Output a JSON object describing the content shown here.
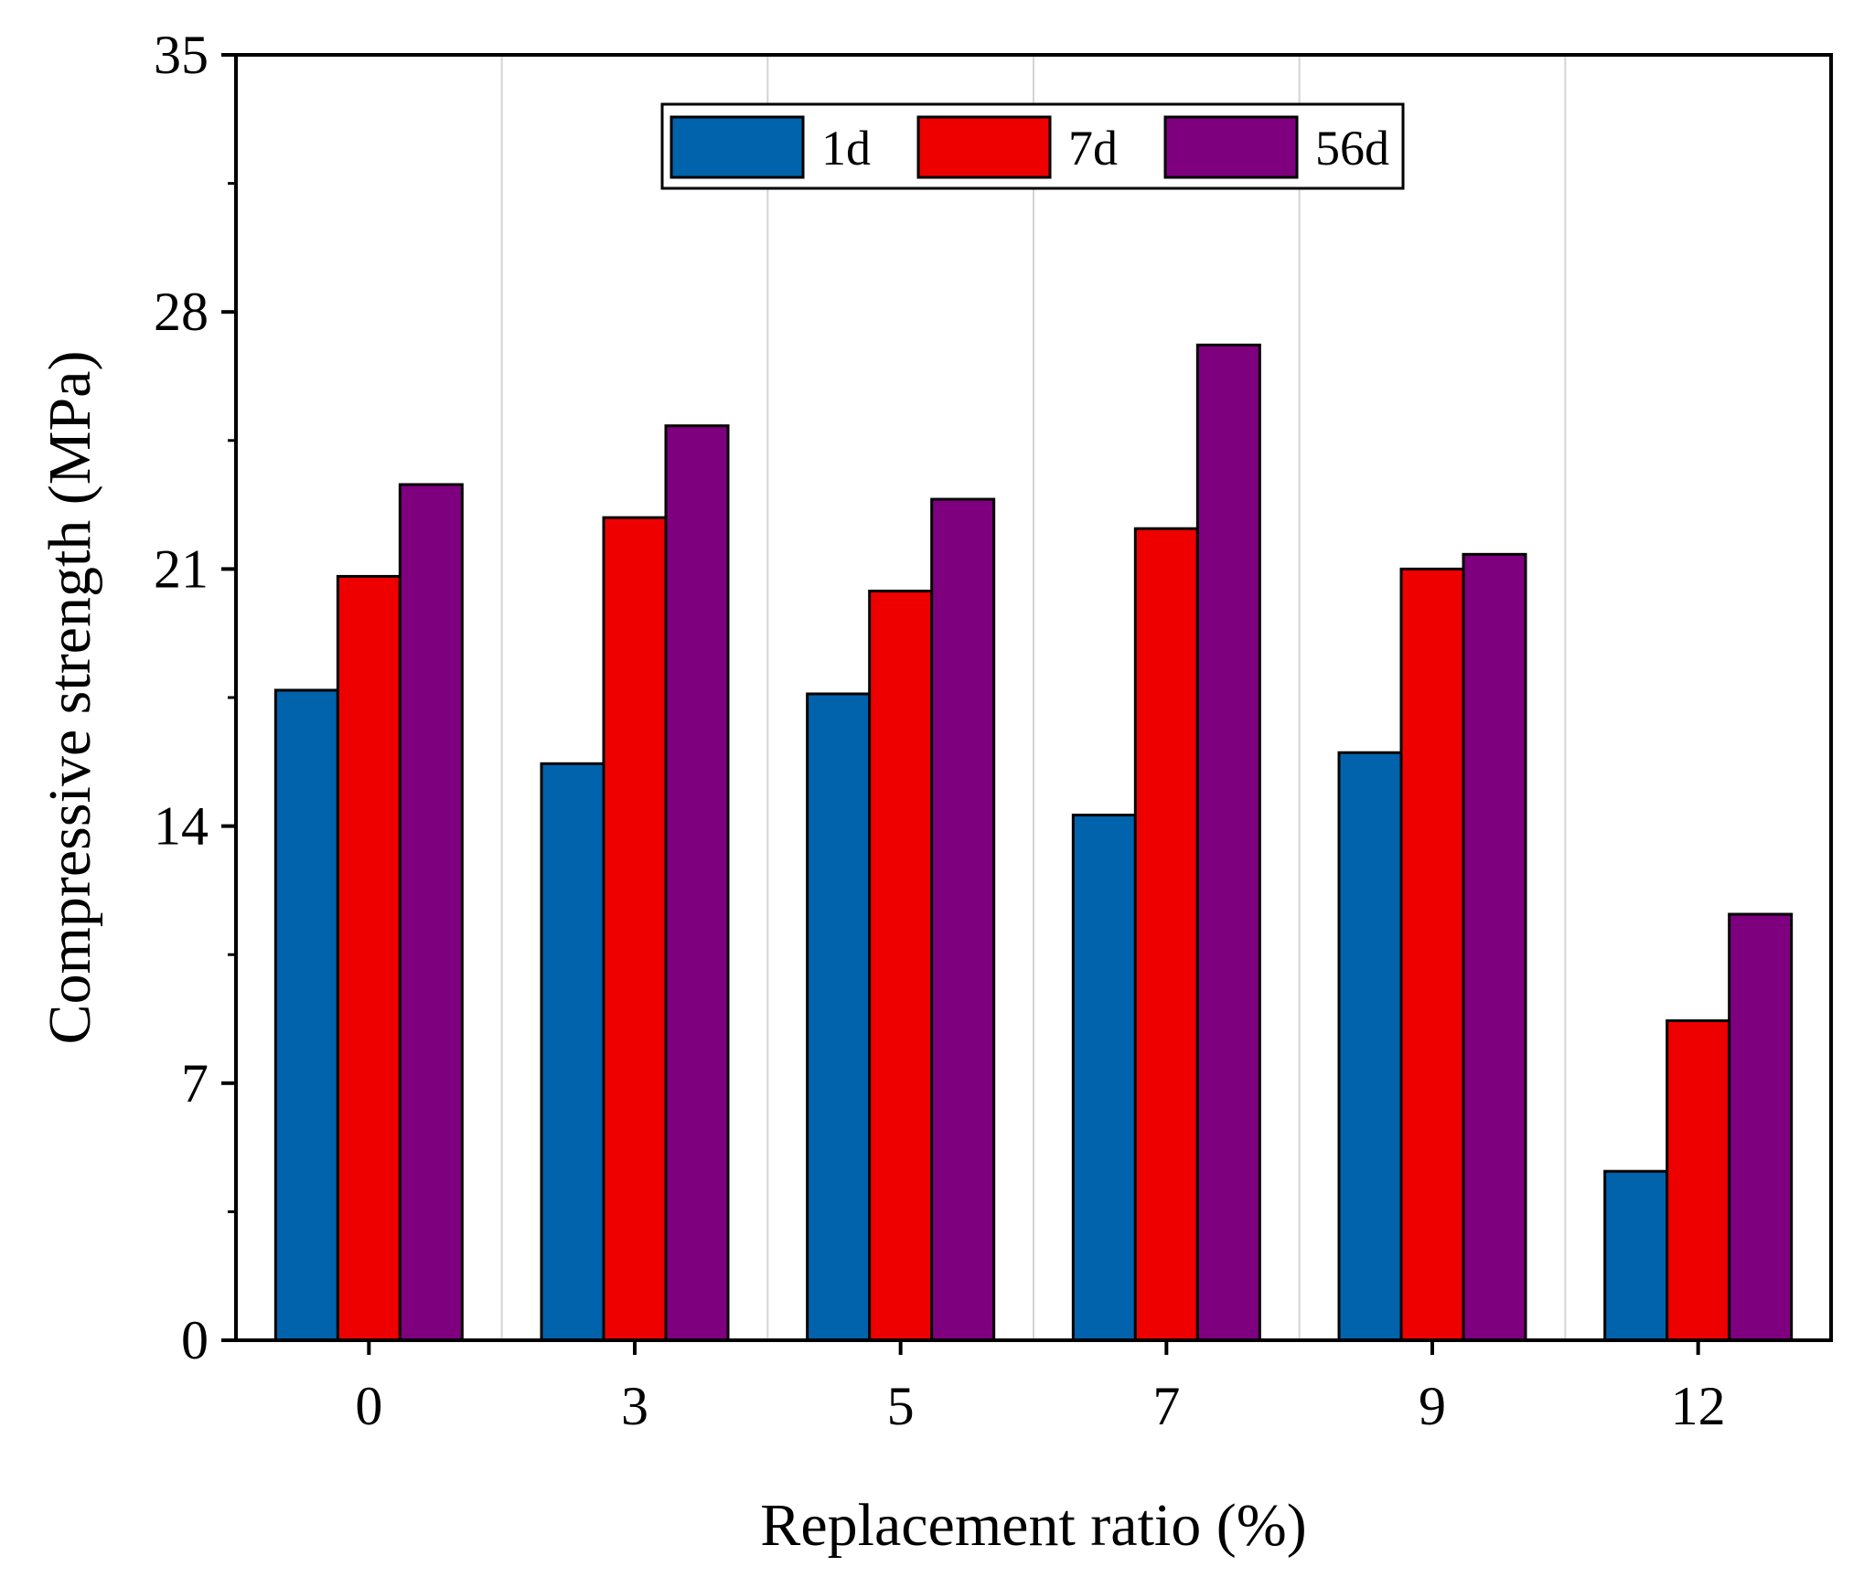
{
  "chart_data": {
    "type": "bar",
    "title": "",
    "xlabel": "Replacement ratio (%)",
    "ylabel": "Compressive strength (MPa)",
    "categories": [
      "0",
      "3",
      "5",
      "7",
      "9",
      "12"
    ],
    "ylim": [
      0,
      35
    ],
    "yticks": [
      0,
      7,
      14,
      21,
      28,
      35
    ],
    "yticks_text": [
      "0",
      "7",
      "14",
      "21",
      "28",
      "35"
    ],
    "grid": "vertical separators between category groups",
    "legend": "top-center",
    "series": [
      {
        "name": "1d",
        "color": "#0063AC",
        "values": [
          17.7,
          15.7,
          17.6,
          14.3,
          16.0,
          4.6
        ]
      },
      {
        "name": "7d",
        "color": "#EE0000",
        "values": [
          20.8,
          22.4,
          20.4,
          22.1,
          21.0,
          8.7
        ]
      },
      {
        "name": "56d",
        "color": "#7F007F",
        "values": [
          23.3,
          24.9,
          22.9,
          27.1,
          21.4,
          11.6
        ]
      }
    ]
  }
}
